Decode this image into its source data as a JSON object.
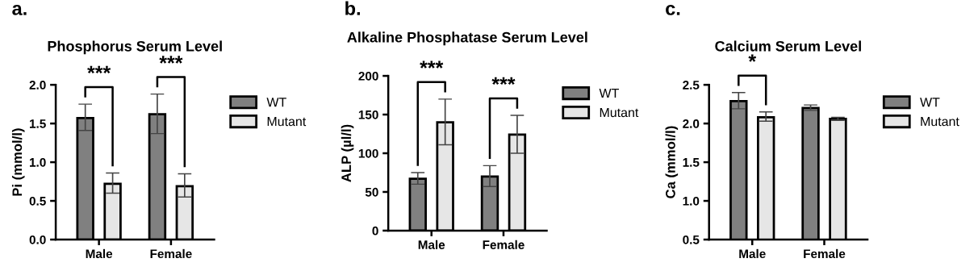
{
  "chart_data": [
    {
      "type": "bar",
      "title": "Phosphorus Serum Level",
      "ylabel": "Pi (mmol/l)",
      "categories": [
        "Male",
        "Female"
      ],
      "ylim": [
        0,
        2.0
      ],
      "yticks": [
        {
          "value": 0,
          "label": "0.0"
        },
        0.5,
        {
          "value": 1,
          "label": "1.0"
        },
        1.5,
        {
          "value": 2,
          "label": "2.0"
        }
      ],
      "legend": "right",
      "grid": false,
      "series": [
        {
          "name": "WT",
          "color": "#808080",
          "values": [
            1.57,
            1.62
          ],
          "errors": [
            [
              1.41,
              1.75
            ],
            [
              1.37,
              1.88
            ]
          ]
        },
        {
          "name": "Mutant",
          "color": "#e6e6e6",
          "values": [
            0.72,
            0.69
          ],
          "errors": [
            [
              0.6,
              0.86
            ],
            [
              0.55,
              0.85
            ]
          ]
        }
      ],
      "annotations": [
        "a.",
        "***",
        "***"
      ]
    },
    {
      "type": "bar",
      "title": "Alkaline Phosphatase Serum Level",
      "ylabel": "ALP (µl/l)",
      "categories": [
        "Male",
        "Female"
      ],
      "ylim": [
        0,
        200
      ],
      "yticks": [
        0,
        50,
        100,
        150,
        200
      ],
      "legend": "right",
      "grid": false,
      "series": [
        {
          "name": "WT",
          "color": "#808080",
          "values": [
            67,
            70
          ],
          "errors": [
            [
              60,
              75
            ],
            [
              57,
              84
            ]
          ]
        },
        {
          "name": "Mutant",
          "color": "#e6e6e6",
          "values": [
            140,
            124
          ],
          "errors": [
            [
              111,
              170
            ],
            [
              100,
              149
            ]
          ]
        }
      ],
      "annotations": [
        "b.",
        "***",
        "***"
      ]
    },
    {
      "type": "bar",
      "title": "Calcium Serum Level",
      "ylabel": "Ca (mmol/l)",
      "categories": [
        "Male",
        "Female"
      ],
      "ylim": [
        0.5,
        2.5
      ],
      "yticks": [
        0.5,
        {
          "value": 1,
          "label": "1.0"
        },
        1.5,
        {
          "value": 2,
          "label": "2.0"
        },
        2.5
      ],
      "legend": "right",
      "grid": false,
      "series": [
        {
          "name": "WT",
          "color": "#808080",
          "values": [
            2.29,
            2.2
          ],
          "errors": [
            [
              2.19,
              2.4
            ],
            [
              2.17,
              2.24
            ]
          ]
        },
        {
          "name": "Mutant",
          "color": "#e6e6e6",
          "values": [
            2.08,
            2.06
          ],
          "errors": [
            [
              2.03,
              2.15
            ],
            [
              2.04,
              2.08
            ]
          ]
        }
      ],
      "annotations": [
        "c.",
        "*"
      ]
    }
  ]
}
